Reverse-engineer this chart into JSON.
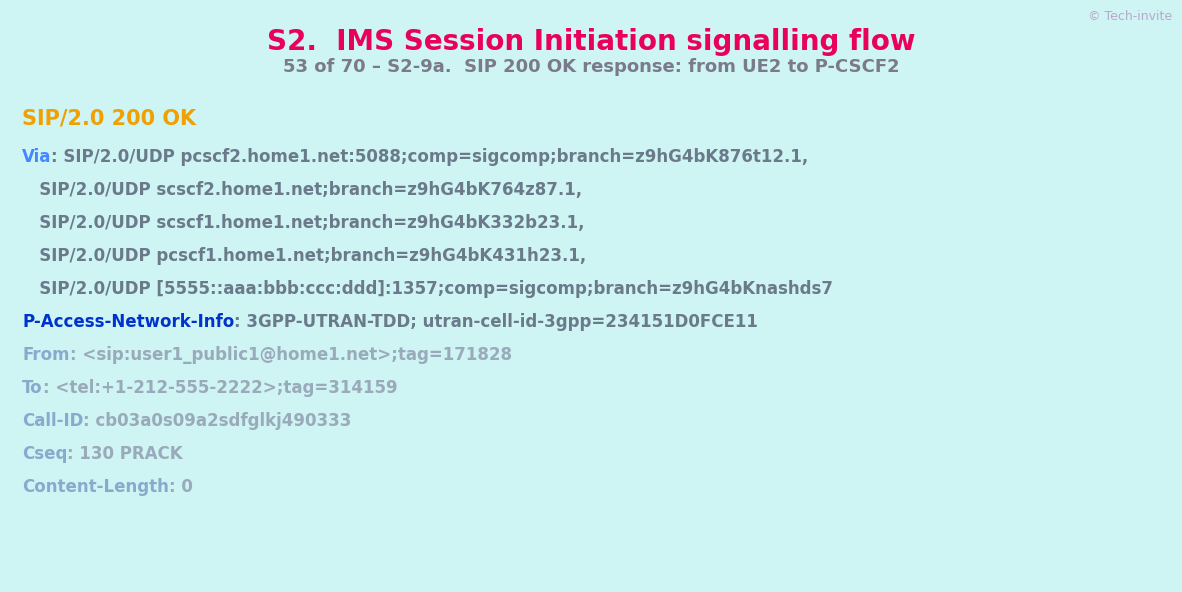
{
  "bg_color": "#cff4f4",
  "title": "S2.  IMS Session Initiation signalling flow",
  "title_color": "#e8005a",
  "subtitle": "53 of 70 – S2-9a.  SIP 200 OK response: from UE2 to P-CSCF2",
  "subtitle_color": "#7a7a8a",
  "copyright": "© Tech-invite",
  "copyright_color": "#b8a8cc",
  "sip_status_color": "#f0a000",
  "sip_status": "SIP/2.0 200 OK",
  "lines": [
    {
      "label": "Via",
      "label_color": "#4488ff",
      "text": ": SIP/2.0/UDP pcscf2.home1.net:5088;comp=sigcomp;branch=z9hG4bK876t12.1,",
      "text_color": "#6a7a8a"
    },
    {
      "label": "",
      "label_color": "#4488ff",
      "text": "   SIP/2.0/UDP scscf2.home1.net;branch=z9hG4bK764z87.1,",
      "text_color": "#6a7a8a"
    },
    {
      "label": "",
      "label_color": "#4488ff",
      "text": "   SIP/2.0/UDP scscf1.home1.net;branch=z9hG4bK332b23.1,",
      "text_color": "#6a7a8a"
    },
    {
      "label": "",
      "label_color": "#4488ff",
      "text": "   SIP/2.0/UDP pcscf1.home1.net;branch=z9hG4bK431h23.1,",
      "text_color": "#6a7a8a"
    },
    {
      "label": "",
      "label_color": "#4488ff",
      "text": "   SIP/2.0/UDP [5555::aaa:bbb:ccc:ddd]:1357;comp=sigcomp;branch=z9hG4bKnashds7",
      "text_color": "#6a7a8a"
    },
    {
      "label": "P-Access-Network-Info",
      "label_color": "#0033cc",
      "text": ": 3GPP-UTRAN-TDD; utran-cell-id-3gpp=234151D0FCE11",
      "text_color": "#6a7a8a"
    },
    {
      "label": "From",
      "label_color": "#88aacc",
      "text": ": <sip:user1_public1@home1.net>;tag=171828",
      "text_color": "#99aabb"
    },
    {
      "label": "To",
      "label_color": "#88aacc",
      "text": ": <tel:+1-212-555-2222>;tag=314159",
      "text_color": "#99aabb"
    },
    {
      "label": "Call-ID",
      "label_color": "#88aacc",
      "text": ": cb03a0s09a2sdfglkj490333",
      "text_color": "#99aabb"
    },
    {
      "label": "Cseq",
      "label_color": "#88aacc",
      "text": ": 130 PRACK",
      "text_color": "#99aabb"
    },
    {
      "label": "Content-Length",
      "label_color": "#88aacc",
      "text": ": 0",
      "text_color": "#99aabb"
    }
  ],
  "title_fontsize": 20,
  "subtitle_fontsize": 13,
  "copyright_fontsize": 9,
  "sip_status_fontsize": 15,
  "body_fontsize": 12
}
